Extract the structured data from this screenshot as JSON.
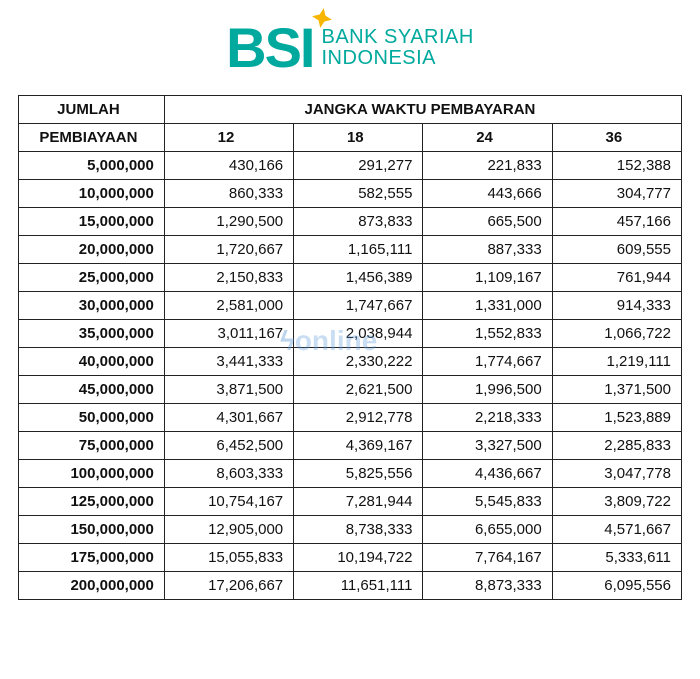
{
  "logo": {
    "abbrev": "BSI",
    "line1": "BANK SYARIAH",
    "line2": "INDONESIA",
    "brand_color": "#00a99d",
    "star_color": "#f7b500"
  },
  "table": {
    "type": "table",
    "header_left_top": "JUMLAH",
    "header_left_bottom": "PEMBIAYAAN",
    "header_right": "JANGKA WAKTU PEMBAYARAN",
    "columns": [
      "12",
      "18",
      "24",
      "36"
    ],
    "column_widths_pct": [
      22,
      19.5,
      19.5,
      19.5,
      19.5
    ],
    "border_color": "#222222",
    "text_color": "#111111",
    "header_fontsize": 15,
    "cell_fontsize": 15,
    "rows": [
      {
        "jumlah": "5,000,000",
        "v": [
          "430,166",
          "291,277",
          "221,833",
          "152,388"
        ]
      },
      {
        "jumlah": "10,000,000",
        "v": [
          "860,333",
          "582,555",
          "443,666",
          "304,777"
        ]
      },
      {
        "jumlah": "15,000,000",
        "v": [
          "1,290,500",
          "873,833",
          "665,500",
          "457,166"
        ]
      },
      {
        "jumlah": "20,000,000",
        "v": [
          "1,720,667",
          "1,165,111",
          "887,333",
          "609,555"
        ]
      },
      {
        "jumlah": "25,000,000",
        "v": [
          "2,150,833",
          "1,456,389",
          "1,109,167",
          "761,944"
        ]
      },
      {
        "jumlah": "30,000,000",
        "v": [
          "2,581,000",
          "1,747,667",
          "1,331,000",
          "914,333"
        ]
      },
      {
        "jumlah": "35,000,000",
        "v": [
          "3,011,167",
          "2,038,944",
          "1,552,833",
          "1,066,722"
        ]
      },
      {
        "jumlah": "40,000,000",
        "v": [
          "3,441,333",
          "2,330,222",
          "1,774,667",
          "1,219,111"
        ]
      },
      {
        "jumlah": "45,000,000",
        "v": [
          "3,871,500",
          "2,621,500",
          "1,996,500",
          "1,371,500"
        ]
      },
      {
        "jumlah": "50,000,000",
        "v": [
          "4,301,667",
          "2,912,778",
          "2,218,333",
          "1,523,889"
        ]
      },
      {
        "jumlah": "75,000,000",
        "v": [
          "6,452,500",
          "4,369,167",
          "3,327,500",
          "2,285,833"
        ]
      },
      {
        "jumlah": "100,000,000",
        "v": [
          "8,603,333",
          "5,825,556",
          "4,436,667",
          "3,047,778"
        ]
      },
      {
        "jumlah": "125,000,000",
        "v": [
          "10,754,167",
          "7,281,944",
          "5,545,833",
          "3,809,722"
        ]
      },
      {
        "jumlah": "150,000,000",
        "v": [
          "12,905,000",
          "8,738,333",
          "6,655,000",
          "4,571,667"
        ]
      },
      {
        "jumlah": "175,000,000",
        "v": [
          "15,055,833",
          "10,194,722",
          "7,764,167",
          "5,333,611"
        ]
      },
      {
        "jumlah": "200,000,000",
        "v": [
          "17,206,667",
          "11,651,111",
          "8,873,333",
          "6,095,556"
        ]
      }
    ]
  },
  "watermark": {
    "text": "online",
    "color": "rgba(100,160,220,0.35)"
  }
}
